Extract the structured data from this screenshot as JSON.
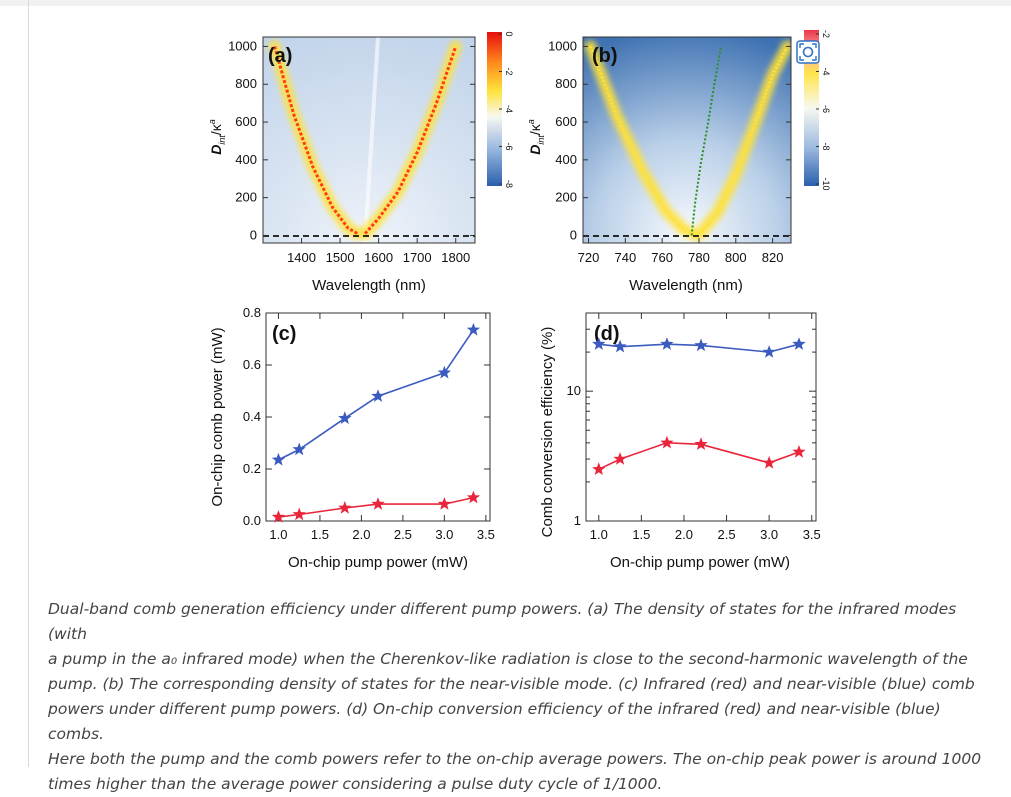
{
  "figure": {
    "panel_a": {
      "label": "(a)",
      "xlabel": "Wavelength (nm)",
      "ylabel_main": "D",
      "ylabel_sub": "int",
      "ylabel_tail": "/κ",
      "ylabel_sup": "a",
      "xticks": [
        "1400",
        "1500",
        "1600",
        "1700",
        "1800"
      ],
      "yticks": [
        "0",
        "200",
        "400",
        "600",
        "800",
        "1000"
      ],
      "colorbar_ticks": [
        "0",
        "-2",
        "-4",
        "-6",
        "-8"
      ]
    },
    "panel_b": {
      "label": "(b)",
      "xlabel": "Wavelength (nm)",
      "ylabel_main": "D",
      "ylabel_sub": "int",
      "ylabel_tail": "/κ",
      "ylabel_sup": "a",
      "xticks": [
        "720",
        "740",
        "760",
        "780",
        "800",
        "820"
      ],
      "yticks": [
        "0",
        "200",
        "400",
        "600",
        "800",
        "1000"
      ],
      "colorbar_ticks": [
        "-2",
        "-4",
        "-6",
        "-8",
        "-10"
      ]
    },
    "panel_c": {
      "label": "(c)",
      "xlabel": "On-chip pump power (mW)",
      "ylabel": "On-chip comb power (mW)",
      "xticks": [
        "1.0",
        "1.5",
        "2.0",
        "2.5",
        "3.0",
        "3.5"
      ],
      "yticks": [
        "0.0",
        "0.2",
        "0.4",
        "0.6",
        "0.8"
      ]
    },
    "panel_d": {
      "label": "(d)",
      "xlabel": "On-chip pump power (mW)",
      "ylabel": "Comb conversion efficiency (%)",
      "xticks": [
        "1.0",
        "1.5",
        "2.0",
        "2.5",
        "3.0",
        "3.5"
      ],
      "yticks": [
        "1",
        "10"
      ]
    }
  },
  "chart_data": [
    {
      "type": "heatmap",
      "panel": "(a)",
      "xlabel": "Wavelength (nm)",
      "ylabel": "Dint/κa",
      "xlim": [
        1300,
        1850
      ],
      "ylim": [
        -40,
        1050
      ],
      "colorbar_range": [
        -8,
        0
      ],
      "curves": [
        {
          "color": "#ff3b1c",
          "x": [
            1330,
            1380,
            1430,
            1480,
            1520,
            1545
          ],
          "y": [
            1000,
            640,
            360,
            150,
            40,
            10
          ]
        },
        {
          "color": "#ff3b1c",
          "x": [
            1565,
            1600,
            1650,
            1700,
            1750,
            1800
          ],
          "y": [
            10,
            90,
            230,
            440,
            700,
            1000
          ]
        }
      ],
      "zero_line": 0
    },
    {
      "type": "heatmap",
      "panel": "(b)",
      "xlabel": "Wavelength (nm)",
      "ylabel": "Dint/κa",
      "xlim": [
        717,
        830
      ],
      "ylim": [
        -40,
        1050
      ],
      "colorbar_range": [
        -10,
        -2
      ],
      "curves": [
        {
          "color": "#ffe033",
          "x": [
            721,
            735,
            750,
            762,
            772,
            778
          ],
          "y": [
            1000,
            640,
            330,
            130,
            30,
            5
          ]
        },
        {
          "color": "#ffe033",
          "x": [
            780,
            790,
            800,
            810,
            820,
            828
          ],
          "y": [
            5,
            120,
            320,
            580,
            850,
            1000
          ]
        },
        {
          "color": "#2a8f2a",
          "x": [
            776,
            778,
            781,
            785,
            788,
            792
          ],
          "y": [
            0,
            180,
            380,
            600,
            780,
            1000
          ]
        }
      ],
      "zero_line": 0
    },
    {
      "type": "line",
      "panel": "(c)",
      "xlabel": "On-chip pump power (mW)",
      "ylabel": "On-chip comb power (mW)",
      "xlim": [
        0.85,
        3.55
      ],
      "ylim": [
        0.0,
        0.8
      ],
      "series": [
        {
          "color": "#3b5bbf",
          "x": [
            1.0,
            1.25,
            1.8,
            2.2,
            3.0,
            3.35
          ],
          "values": [
            0.235,
            0.275,
            0.395,
            0.48,
            0.57,
            0.735
          ]
        },
        {
          "color": "#e8253a",
          "x": [
            1.0,
            1.25,
            1.8,
            2.2,
            3.0,
            3.35
          ],
          "values": [
            0.015,
            0.025,
            0.05,
            0.065,
            0.065,
            0.09
          ]
        }
      ]
    },
    {
      "type": "line",
      "panel": "(d)",
      "xlabel": "On-chip pump power (mW)",
      "ylabel": "Comb conversion efficiency (%)",
      "xlim": [
        0.85,
        3.55
      ],
      "ylim": [
        1,
        40
      ],
      "log_y": true,
      "series": [
        {
          "color": "#3b5bbf",
          "x": [
            1.0,
            1.25,
            1.8,
            2.2,
            3.0,
            3.35
          ],
          "values": [
            23,
            22,
            23,
            22.5,
            20,
            23
          ]
        },
        {
          "color": "#e8253a",
          "x": [
            1.0,
            1.25,
            1.8,
            2.2,
            3.0,
            3.35
          ],
          "values": [
            2.5,
            3.0,
            4.0,
            3.9,
            2.8,
            3.4
          ]
        }
      ]
    }
  ],
  "caption": {
    "l1": "Dual-band comb generation efficiency under different pump powers. (a) The density of states for the infrared modes (with",
    "l2": "a pump in the a₀ infrared mode) when the Cherenkov-like radiation is close to the second-harmonic wavelength of the",
    "l3": "pump. (b) The corresponding density of states for the near-visible mode. (c) Infrared (red) and near-visible (blue) comb",
    "l4": "powers under different pump powers. (d) On-chip conversion efficiency of the infrared (red) and near-visible (blue) combs.",
    "l5": "Here both the pump and the comb powers refer to the on-chip average powers. The on-chip peak power is around 1000",
    "l6": "times higher than the average power considering a pulse duty cycle of 1/1000."
  }
}
